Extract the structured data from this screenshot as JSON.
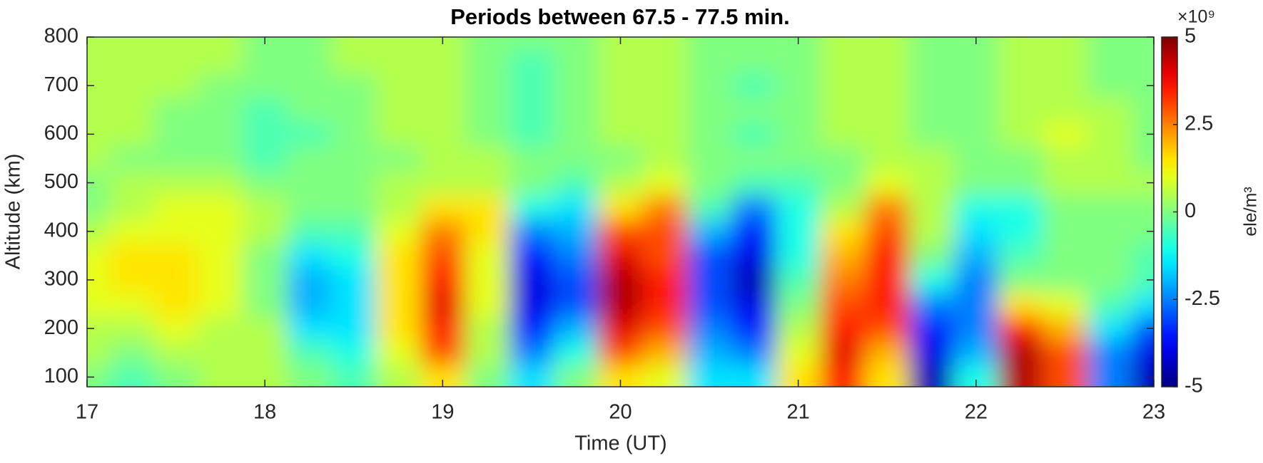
{
  "chart_data": {
    "type": "heatmap",
    "title": "Periods between 67.5 - 77.5 min.",
    "x_label": "Time (UT)",
    "y_label": "Altitude (km)",
    "colorbar_label": "ele/m³",
    "colorbar_exponent": "×10⁹",
    "colormap": "jet",
    "clim": [
      -5,
      5
    ],
    "cticks": [
      5,
      2.5,
      0,
      -2.5,
      -5
    ],
    "xlim": [
      17,
      23
    ],
    "xticks": [
      17,
      18,
      19,
      20,
      21,
      22,
      23
    ],
    "ylim": [
      80,
      800
    ],
    "yticks": [
      100,
      200,
      300,
      400,
      500,
      600,
      700,
      800
    ],
    "x": [
      17,
      17.25,
      17.5,
      17.75,
      18,
      18.25,
      18.5,
      18.75,
      19,
      19.25,
      19.5,
      19.75,
      20,
      20.25,
      20.5,
      20.75,
      21,
      21.25,
      21.5,
      21.75,
      22,
      22.25,
      22.5,
      22.75,
      23
    ],
    "y": [
      100,
      150,
      200,
      250,
      300,
      350,
      400,
      450,
      500,
      550,
      600,
      650,
      700,
      750,
      800
    ],
    "z": [
      [
        0,
        -0.5,
        0,
        0.5,
        0.5,
        0,
        -0.5,
        0.5,
        1.5,
        0,
        -1.5,
        0,
        1.5,
        1,
        -1.5,
        -1.5,
        1.5,
        3.5,
        1.5,
        -4.5,
        -1,
        4.5,
        3,
        -2.5,
        -4.5
      ],
      [
        0.5,
        0,
        0.5,
        0.5,
        0.5,
        -0.5,
        -1,
        1,
        3,
        0.5,
        -2.5,
        -1,
        3,
        2,
        -2,
        -2.5,
        1,
        4,
        2,
        -4,
        -2,
        4.5,
        3,
        -2.5,
        -4
      ],
      [
        0.5,
        0.5,
        1,
        0.5,
        0.5,
        -1.5,
        -1.5,
        1.5,
        3.5,
        0.5,
        -3.5,
        -2,
        4,
        3,
        -2.5,
        -3.5,
        0.5,
        3.5,
        3,
        -3.5,
        -2.5,
        3.5,
        2,
        -1.5,
        -3
      ],
      [
        1,
        1,
        1.5,
        1,
        0,
        -2,
        -1.5,
        1.5,
        4,
        1,
        -4,
        -3,
        4.5,
        3.5,
        -3,
        -4,
        0,
        3,
        3.5,
        -2.5,
        -2.5,
        1.5,
        1,
        -0.5,
        -1.5
      ],
      [
        1,
        1.5,
        1.5,
        1,
        0,
        -2,
        -1.5,
        1.5,
        3.5,
        1,
        -4,
        -3,
        4.5,
        3.5,
        -3,
        -4.5,
        -0.5,
        2.5,
        3.5,
        -1,
        -2.5,
        0,
        0,
        0,
        -0.5
      ],
      [
        1,
        1.5,
        1.5,
        1,
        0,
        -1.5,
        -1,
        1.5,
        3,
        1,
        -3.5,
        -2.5,
        4,
        3,
        -3,
        -4,
        -1,
        2,
        3.5,
        0,
        -2,
        -0.5,
        0,
        0,
        -0.5
      ],
      [
        0.5,
        1,
        1,
        1,
        0.5,
        -0.5,
        -0.5,
        1,
        2.5,
        1.5,
        -2.5,
        -2,
        3,
        3,
        -2,
        -3.5,
        -1,
        1.5,
        3,
        0.5,
        -1.5,
        -1,
        0,
        0,
        0
      ],
      [
        0,
        0.5,
        1,
        1,
        0.5,
        0,
        0,
        0.5,
        1.5,
        1.5,
        -1,
        -1.5,
        1.5,
        2.5,
        -0.5,
        -2.5,
        -1,
        0.5,
        2.5,
        0.5,
        -1,
        -1,
        0,
        0,
        0
      ],
      [
        0,
        0.5,
        0.5,
        0.5,
        0,
        0,
        0,
        0.5,
        0.5,
        0.5,
        0,
        -0.5,
        0.5,
        1,
        0,
        -0.5,
        -0.5,
        0,
        1,
        0.5,
        0,
        0,
        0.5,
        0.5,
        0.5
      ],
      [
        0.5,
        0,
        0,
        0,
        -0.5,
        0,
        0,
        0,
        0.5,
        0.5,
        0,
        0,
        0,
        0.5,
        0,
        0,
        0,
        0,
        0.5,
        0.5,
        0,
        0,
        0.5,
        0.5,
        0
      ],
      [
        0.5,
        0.5,
        0,
        0,
        -0.5,
        -0.5,
        0,
        0.5,
        0.5,
        0,
        -0.5,
        0,
        0.5,
        0.5,
        0,
        -0.5,
        0,
        0.5,
        0.5,
        0,
        0,
        0.5,
        1,
        0.5,
        0
      ],
      [
        0.5,
        0.5,
        0,
        0,
        -0.5,
        0,
        0,
        0.5,
        0.5,
        0,
        -0.5,
        0,
        0.5,
        0.5,
        0,
        0,
        0,
        0.5,
        0.5,
        0,
        0,
        0.5,
        0.5,
        0.5,
        0
      ],
      [
        0.5,
        0.5,
        0.5,
        0,
        0,
        0,
        0,
        0.5,
        0.5,
        0,
        -0.5,
        0,
        0.5,
        0.5,
        0,
        -0.5,
        0,
        0.5,
        0.5,
        0,
        0,
        0.5,
        0.5,
        0,
        0
      ],
      [
        0.5,
        0.5,
        0.5,
        0.5,
        0,
        0,
        0.5,
        0.5,
        0.5,
        0,
        -0.5,
        0,
        0.5,
        0.5,
        0,
        0,
        0,
        0.5,
        0.5,
        0,
        0,
        0.5,
        0.5,
        0,
        0
      ],
      [
        0.5,
        0.5,
        0.5,
        0.5,
        0,
        0,
        0.5,
        0.5,
        0.5,
        0,
        0,
        0,
        0.5,
        0.5,
        0,
        0,
        0,
        0.5,
        0.5,
        0,
        0,
        0.5,
        0.5,
        0,
        0
      ]
    ]
  }
}
